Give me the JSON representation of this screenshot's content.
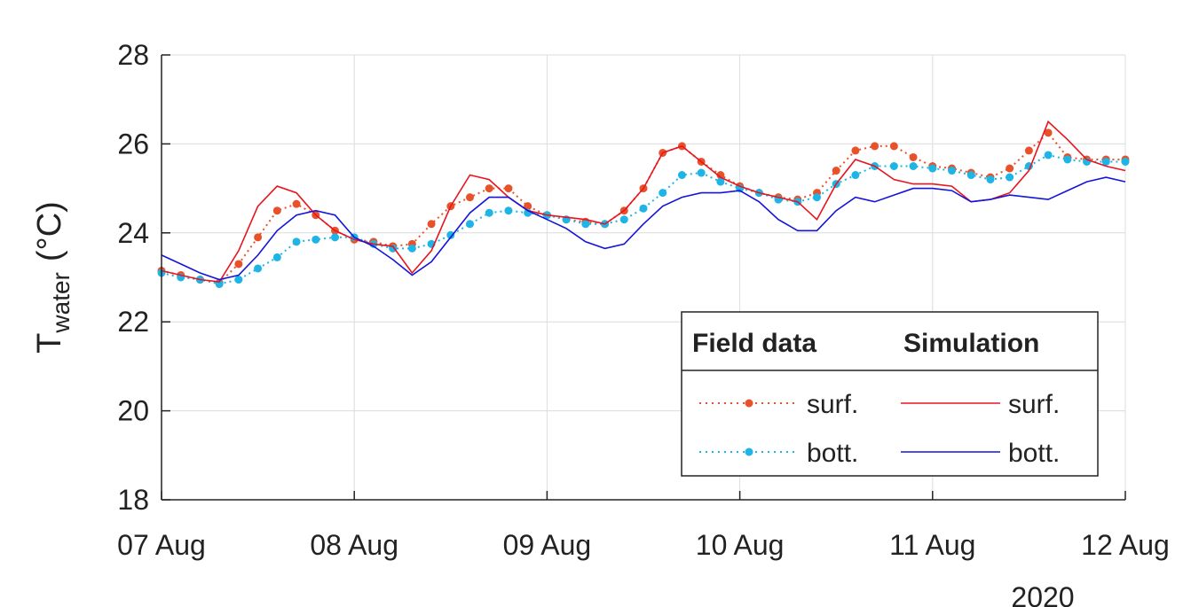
{
  "chart_data": {
    "type": "line",
    "ylabel": "T",
    "ylabel_sub": "water",
    "ylabel_unit": "(°C)",
    "x_annotation": "2020",
    "legend_headers": [
      "Field data",
      "Simulation"
    ],
    "legend": "lower right",
    "grid": true,
    "x": [
      0,
      0.1,
      0.2,
      0.3,
      0.4,
      0.5,
      0.6,
      0.7,
      0.8,
      0.9,
      1,
      1.1,
      1.2,
      1.3,
      1.4,
      1.5,
      1.6,
      1.7,
      1.8,
      1.9,
      2,
      2.1,
      2.2,
      2.3,
      2.4,
      2.5,
      2.6,
      2.7,
      2.8,
      2.9,
      3,
      3.1,
      3.2,
      3.3,
      3.4,
      3.5,
      3.6,
      3.7,
      3.8,
      3.9,
      4,
      4.1,
      4.2,
      4.3,
      4.4,
      4.5,
      4.6,
      4.7,
      4.8,
      4.9,
      5
    ],
    "xlim": [
      0,
      5
    ],
    "xticks": [
      {
        "value": 0,
        "label": "07 Aug"
      },
      {
        "value": 1,
        "label": "08 Aug"
      },
      {
        "value": 2,
        "label": "09 Aug"
      },
      {
        "value": 3,
        "label": "10 Aug"
      },
      {
        "value": 4,
        "label": "11 Aug"
      },
      {
        "value": 5,
        "label": "12 Aug"
      }
    ],
    "ylim": [
      18,
      28
    ],
    "yticks": [
      18,
      20,
      22,
      24,
      26,
      28
    ],
    "series": [
      {
        "name": "surf.",
        "group": "Field data",
        "style": "markers",
        "color": "#e8522a",
        "values": [
          23.15,
          23.05,
          22.95,
          22.88,
          23.3,
          23.9,
          24.5,
          24.65,
          24.4,
          24.05,
          23.85,
          23.8,
          23.7,
          23.75,
          24.2,
          24.6,
          24.8,
          25.0,
          25.0,
          24.6,
          24.4,
          24.3,
          24.25,
          24.2,
          24.5,
          25.0,
          25.8,
          25.95,
          25.6,
          25.3,
          25.05,
          24.9,
          24.8,
          24.75,
          24.9,
          25.4,
          25.85,
          25.95,
          25.95,
          25.7,
          25.5,
          25.45,
          25.35,
          25.25,
          25.45,
          25.85,
          26.25,
          25.7,
          25.65,
          25.65,
          25.65
        ]
      },
      {
        "name": "bott.",
        "group": "Field data",
        "style": "markers",
        "color": "#1eb4e6",
        "values": [
          23.1,
          23.0,
          22.95,
          22.85,
          22.95,
          23.2,
          23.45,
          23.8,
          23.85,
          23.9,
          23.9,
          23.75,
          23.65,
          23.65,
          23.75,
          23.95,
          24.2,
          24.45,
          24.5,
          24.45,
          24.4,
          24.3,
          24.2,
          24.2,
          24.3,
          24.55,
          24.9,
          25.3,
          25.35,
          25.15,
          25.0,
          24.9,
          24.75,
          24.7,
          24.8,
          25.1,
          25.3,
          25.5,
          25.5,
          25.5,
          25.45,
          25.4,
          25.3,
          25.2,
          25.25,
          25.5,
          25.75,
          25.65,
          25.6,
          25.6,
          25.6
        ]
      },
      {
        "name": "surf.",
        "group": "Simulation",
        "style": "line",
        "color": "#e8141e",
        "values": [
          23.15,
          23.05,
          22.95,
          22.9,
          23.6,
          24.6,
          25.05,
          24.9,
          24.4,
          24.05,
          23.85,
          23.75,
          23.7,
          23.1,
          23.6,
          24.6,
          25.3,
          25.2,
          24.8,
          24.5,
          24.4,
          24.35,
          24.3,
          24.2,
          24.5,
          25.0,
          25.8,
          25.95,
          25.6,
          25.25,
          25.05,
          24.9,
          24.8,
          24.7,
          24.3,
          25.1,
          25.65,
          25.5,
          25.2,
          25.1,
          25.1,
          25.05,
          24.7,
          24.75,
          24.9,
          25.4,
          26.5,
          26.1,
          25.65,
          25.5,
          25.4
        ]
      },
      {
        "name": "bott.",
        "group": "Simulation",
        "style": "line",
        "color": "#1414dc",
        "values": [
          23.5,
          23.3,
          23.1,
          22.95,
          23.05,
          23.5,
          24.05,
          24.4,
          24.5,
          24.4,
          23.9,
          23.7,
          23.4,
          23.05,
          23.35,
          23.9,
          24.45,
          24.8,
          24.8,
          24.5,
          24.3,
          24.1,
          23.8,
          23.65,
          23.75,
          24.2,
          24.6,
          24.8,
          24.9,
          24.9,
          24.95,
          24.7,
          24.3,
          24.05,
          24.05,
          24.5,
          24.8,
          24.7,
          24.85,
          25.0,
          25.0,
          24.95,
          24.7,
          24.75,
          24.85,
          24.8,
          24.75,
          24.95,
          25.15,
          25.25,
          25.15
        ]
      }
    ]
  }
}
